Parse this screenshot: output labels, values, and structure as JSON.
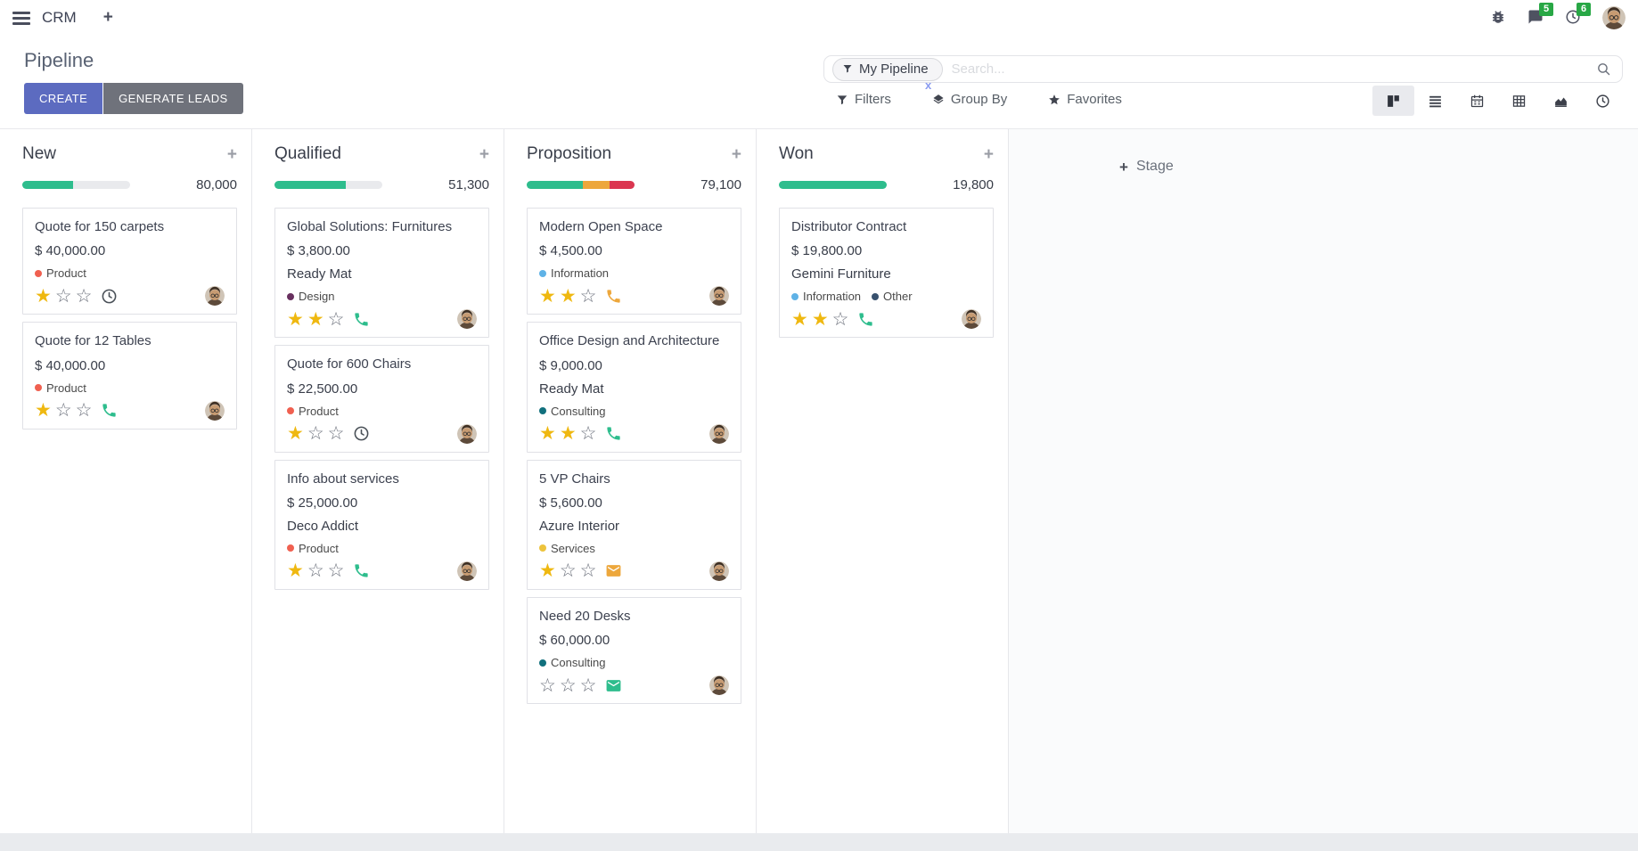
{
  "navbar": {
    "app_name": "CRM",
    "messages_count": "5",
    "activities_count": "6"
  },
  "control_panel": {
    "title": "Pipeline",
    "buttons": {
      "create": "CREATE",
      "generate_leads": "GENERATE LEADS"
    },
    "search": {
      "facet_label": "My Pipeline",
      "placeholder": "Search...",
      "remove_facet_glyph": "x"
    },
    "toolbar": {
      "filters": "Filters",
      "group_by": "Group By",
      "favorites": "Favorites"
    },
    "view_switcher": [
      {
        "icon": "kanban-icon",
        "active": true
      },
      {
        "icon": "list-icon",
        "active": false
      },
      {
        "icon": "calendar-icon",
        "active": false
      },
      {
        "icon": "pivot-icon",
        "active": false
      },
      {
        "icon": "graph-icon",
        "active": false
      },
      {
        "icon": "activity-icon",
        "active": false
      }
    ]
  },
  "colors": {
    "primary": "#5c6bc0",
    "secondary": "#6f727b",
    "progress_green": "#2ebd8d",
    "progress_orange": "#eda73c",
    "progress_red": "#db3650",
    "badge_green": "#28a745",
    "star_gold": "#efb810"
  },
  "board": {
    "add_stage": "Stage",
    "columns": [
      {
        "name": "New",
        "total": "80,000",
        "progress": [
          {
            "color": "#2ebd8d",
            "pct": 47
          }
        ],
        "cards": [
          {
            "title": "Quote for 150 carpets",
            "amount": "$ 40,000.00",
            "partner": "",
            "tags": [
              {
                "label": "Product",
                "color": "#f06050"
              }
            ],
            "stars": 1,
            "activity_icon": "clock-icon",
            "activity_color": "#495057"
          },
          {
            "title": "Quote for 12 Tables",
            "amount": "$ 40,000.00",
            "partner": "",
            "tags": [
              {
                "label": "Product",
                "color": "#f06050"
              }
            ],
            "stars": 1,
            "activity_icon": "phone-icon",
            "activity_color": "#2ebd8d"
          }
        ]
      },
      {
        "name": "Qualified",
        "total": "51,300",
        "progress": [
          {
            "color": "#2ebd8d",
            "pct": 66
          }
        ],
        "cards": [
          {
            "title": "Global Solutions: Furnitures",
            "amount": "$ 3,800.00",
            "partner": "Ready Mat",
            "tags": [
              {
                "label": "Design",
                "color": "#68305f"
              }
            ],
            "stars": 2,
            "activity_icon": "phone-icon",
            "activity_color": "#2ebd8d"
          },
          {
            "title": "Quote for 600 Chairs",
            "amount": "$ 22,500.00",
            "partner": "",
            "tags": [
              {
                "label": "Product",
                "color": "#f06050"
              }
            ],
            "stars": 1,
            "activity_icon": "clock-icon",
            "activity_color": "#495057"
          },
          {
            "title": "Info about services",
            "amount": "$ 25,000.00",
            "partner": "Deco Addict",
            "tags": [
              {
                "label": "Product",
                "color": "#f06050"
              }
            ],
            "stars": 1,
            "activity_icon": "phone-icon",
            "activity_color": "#2ebd8d"
          }
        ]
      },
      {
        "name": "Proposition",
        "total": "79,100",
        "progress": [
          {
            "color": "#2ebd8d",
            "pct": 52
          },
          {
            "color": "#eda73c",
            "pct": 25
          },
          {
            "color": "#db3650",
            "pct": 23
          }
        ],
        "cards": [
          {
            "title": "Modern Open Space",
            "amount": "$ 4,500.00",
            "partner": "",
            "tags": [
              {
                "label": "Information",
                "color": "#5fb2e6"
              }
            ],
            "stars": 2,
            "activity_icon": "phone-icon",
            "activity_color": "#eda73c"
          },
          {
            "title": "Office Design and Architecture",
            "amount": "$ 9,000.00",
            "partner": "Ready Mat",
            "tags": [
              {
                "label": "Consulting",
                "color": "#11707d"
              }
            ],
            "stars": 2,
            "activity_icon": "phone-icon",
            "activity_color": "#2ebd8d"
          },
          {
            "title": "5 VP Chairs",
            "amount": "$ 5,600.00",
            "partner": "Azure Interior",
            "tags": [
              {
                "label": "Services",
                "color": "#edc33c"
              }
            ],
            "stars": 1,
            "activity_icon": "envelope-icon",
            "activity_color": "#eda73c"
          },
          {
            "title": "Need 20 Desks",
            "amount": "$ 60,000.00",
            "partner": "",
            "tags": [
              {
                "label": "Consulting",
                "color": "#11707d"
              }
            ],
            "stars": 0,
            "activity_icon": "envelope-icon",
            "activity_color": "#2ebd8d"
          }
        ]
      },
      {
        "name": "Won",
        "total": "19,800",
        "progress": [
          {
            "color": "#2ebd8d",
            "pct": 100
          }
        ],
        "cards": [
          {
            "title": "Distributor Contract",
            "amount": "$ 19,800.00",
            "partner": "Gemini Furniture",
            "tags": [
              {
                "label": "Information",
                "color": "#5fb2e6"
              },
              {
                "label": "Other",
                "color": "#38516e"
              }
            ],
            "stars": 2,
            "activity_icon": "phone-icon",
            "activity_color": "#2ebd8d"
          }
        ]
      }
    ]
  }
}
